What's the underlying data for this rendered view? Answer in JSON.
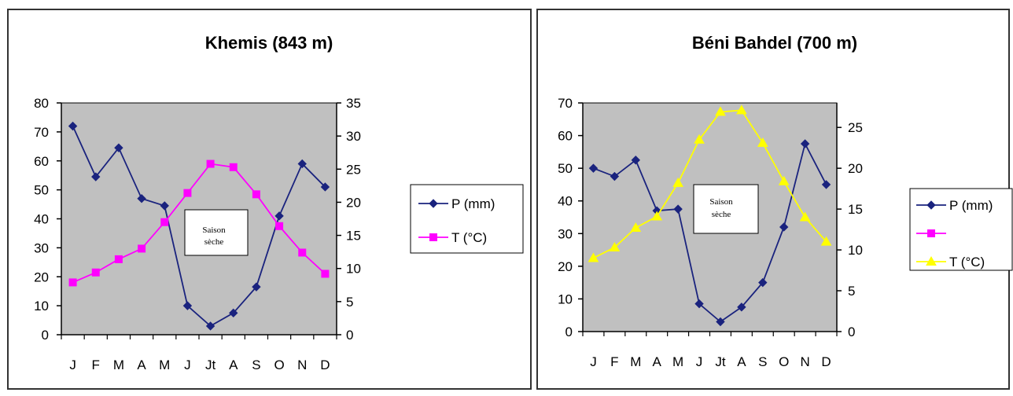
{
  "chart_data": [
    {
      "type": "line",
      "title": "Khemis (843 m)",
      "categories": [
        "J",
        "F",
        "M",
        "A",
        "M",
        "J",
        "Jt",
        "A",
        "S",
        "O",
        "N",
        "D"
      ],
      "y_left_lim": [
        0,
        80
      ],
      "y_left_ticks": [
        "0",
        "10",
        "20",
        "30",
        "40",
        "50",
        "60",
        "70",
        "80"
      ],
      "y_right_lim": [
        0,
        35
      ],
      "y_right_ticks": [
        "0",
        "5",
        "10",
        "15",
        "20",
        "25",
        "30",
        "35"
      ],
      "series": [
        {
          "name": "P (mm)",
          "axis": "left",
          "marker": "diamond",
          "color": "#1a237e",
          "values": [
            72,
            54.5,
            64.5,
            47,
            44.5,
            10,
            3,
            7.5,
            16.5,
            41,
            59,
            51
          ]
        },
        {
          "name": "T (°C)",
          "axis": "right",
          "marker": "square",
          "color": "#ff00ff",
          "values": [
            7.9,
            9.4,
            11.4,
            13,
            17,
            21.4,
            25.8,
            25.3,
            21.2,
            16.4,
            12.4,
            9.2
          ]
        }
      ],
      "legend": [
        {
          "label": "P (mm)",
          "marker": "diamond",
          "color": "#1a237e"
        },
        {
          "label": "T (°C)",
          "marker": "square",
          "color": "#ff00ff"
        }
      ],
      "annotation": {
        "line1": "Saison",
        "line2": "sèche"
      },
      "plot_bg": "#c0c0c0"
    },
    {
      "type": "line",
      "title": "Béni Bahdel (700 m)",
      "categories": [
        "J",
        "F",
        "M",
        "A",
        "M",
        "J",
        "Jt",
        "A",
        "S",
        "O",
        "N",
        "D"
      ],
      "y_left_lim": [
        0,
        70
      ],
      "y_left_ticks": [
        "0",
        "10",
        "20",
        "30",
        "40",
        "50",
        "60",
        "70"
      ],
      "y_right_lim": [
        0,
        28
      ],
      "y_right_ticks": [
        "0",
        "5",
        "10",
        "15",
        "20",
        "25"
      ],
      "series": [
        {
          "name": "P (mm)",
          "axis": "left",
          "marker": "diamond",
          "color": "#1a237e",
          "values": [
            50,
            47.5,
            52.5,
            37,
            37.5,
            8.5,
            3,
            7.5,
            15,
            32,
            57.5,
            45
          ]
        },
        {
          "name": "T (°C)",
          "axis": "right",
          "marker": "triangle",
          "color": "#ffff00",
          "values": [
            9,
            10.3,
            12.7,
            14.1,
            18.2,
            23.5,
            26.9,
            27.1,
            23.1,
            18.4,
            14,
            11
          ]
        }
      ],
      "legend": [
        {
          "label": "P (mm)",
          "marker": "diamond",
          "color": "#1a237e"
        },
        {
          "label": "",
          "marker": "square",
          "color": "#ff00ff"
        },
        {
          "label": "T (°C)",
          "marker": "triangle",
          "color": "#ffff00"
        }
      ],
      "annotation": {
        "line1": "Saison",
        "line2": "sèche"
      },
      "plot_bg": "#c0c0c0"
    }
  ]
}
